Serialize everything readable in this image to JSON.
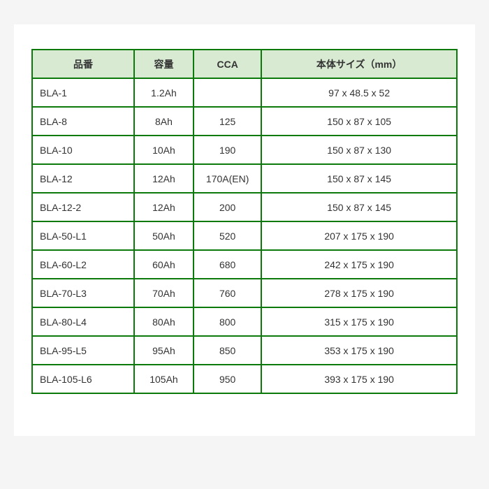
{
  "table": {
    "border_color": "#0b7a0b",
    "header_bg": "#d9ead3",
    "cell_bg": "#ffffff",
    "text_color": "#333333",
    "column_widths_pct": [
      24,
      14,
      16,
      46
    ],
    "column_align": [
      "left",
      "center",
      "center",
      "center"
    ],
    "columns": [
      "品番",
      "容量",
      "CCA",
      "本体サイズ（mm）"
    ],
    "rows": [
      [
        "BLA-1",
        "1.2Ah",
        "",
        " 97 x 48.5 x 52"
      ],
      [
        "BLA-8",
        "8Ah",
        "125",
        "150 x 87 x 105"
      ],
      [
        "BLA-10",
        "10Ah",
        "190",
        "150 x 87 x 130"
      ],
      [
        "BLA-12",
        "12Ah",
        "170A(EN)",
        "150 x 87 x 145"
      ],
      [
        "BLA-12-2",
        "12Ah",
        "200",
        "150 x 87 x 145"
      ],
      [
        "BLA-50-L1",
        "50Ah",
        "520",
        "207 x 175 x 190"
      ],
      [
        "BLA-60-L2",
        "60Ah",
        "680",
        "242 x 175 x 190"
      ],
      [
        "BLA-70-L3",
        "70Ah",
        "760",
        "278 x 175 x 190"
      ],
      [
        "BLA-80-L4",
        "80Ah",
        "800",
        "315 x 175 x 190"
      ],
      [
        "BLA-95-L5",
        "95Ah",
        "850",
        "353 x 175 x 190"
      ],
      [
        "BLA-105-L6",
        "105Ah",
        "950",
        "393 x 175 x 190"
      ]
    ]
  }
}
